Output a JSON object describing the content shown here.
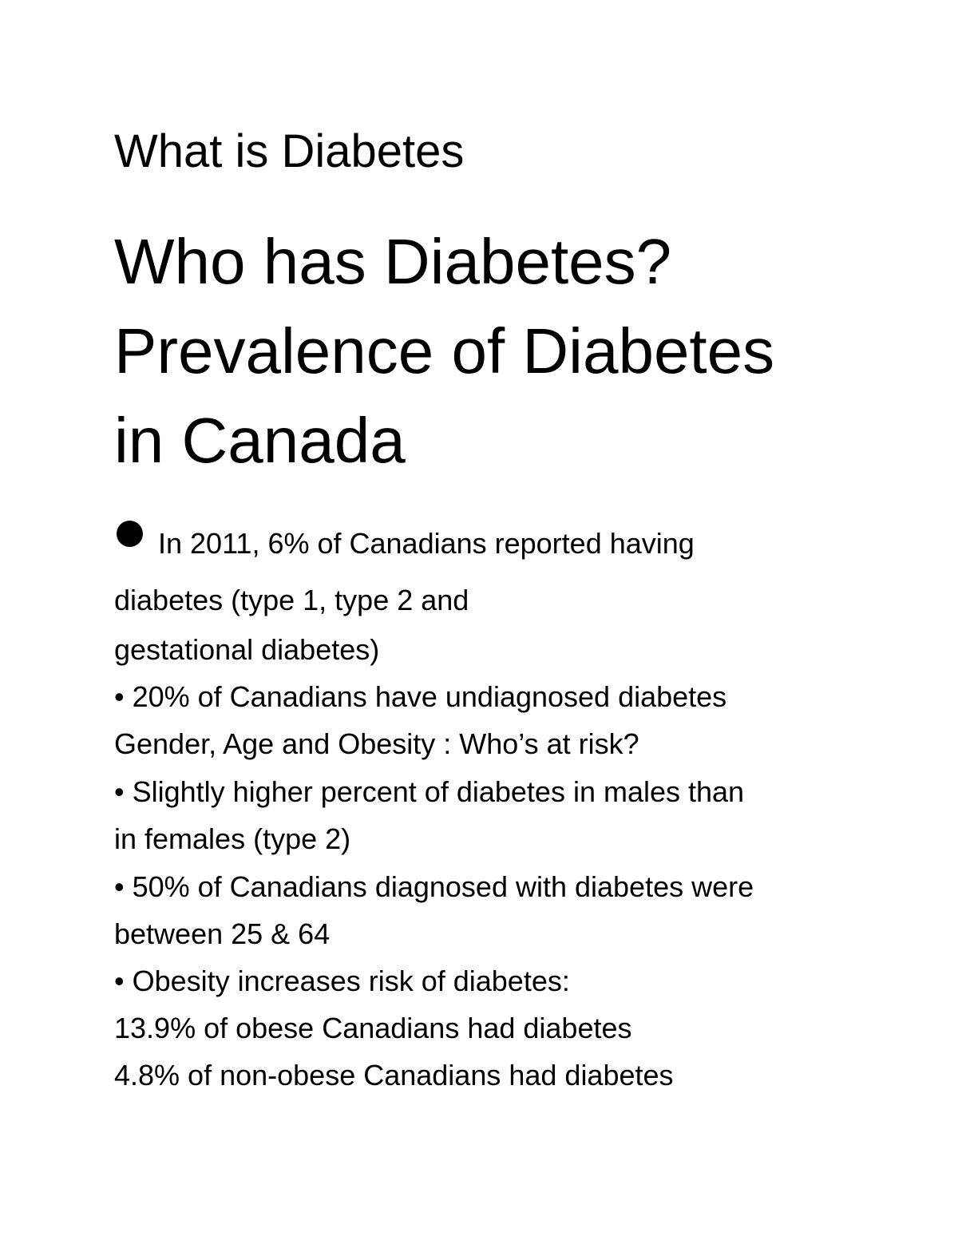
{
  "heading_small": "What is Diabetes",
  "heading_large": {
    "line1": "Who has Diabetes?",
    "line2": "Prevalence of Diabetes",
    "line3": "in Canada"
  },
  "first_bullet": {
    "text": "In 2011, 6% of Canadians reported having"
  },
  "lines": {
    "l1": "diabetes (type 1, type 2 and",
    "l2": "gestational diabetes)",
    "l3": "• 20% of Canadians have undiagnosed diabetes",
    "l4": "Gender, Age and Obesity : Who’s at risk?",
    "l5": "• Slightly higher percent of diabetes in males than",
    "l6": "in females (type 2)",
    "l7": "• 50% of Canadians diagnosed with diabetes were",
    "l8": "between 25 & 64",
    "l9": "• Obesity increases risk of diabetes:",
    "l10": "13.9% of obese Canadians had diabetes",
    "l11": "4.8% of non-obese Canadians had diabetes"
  }
}
